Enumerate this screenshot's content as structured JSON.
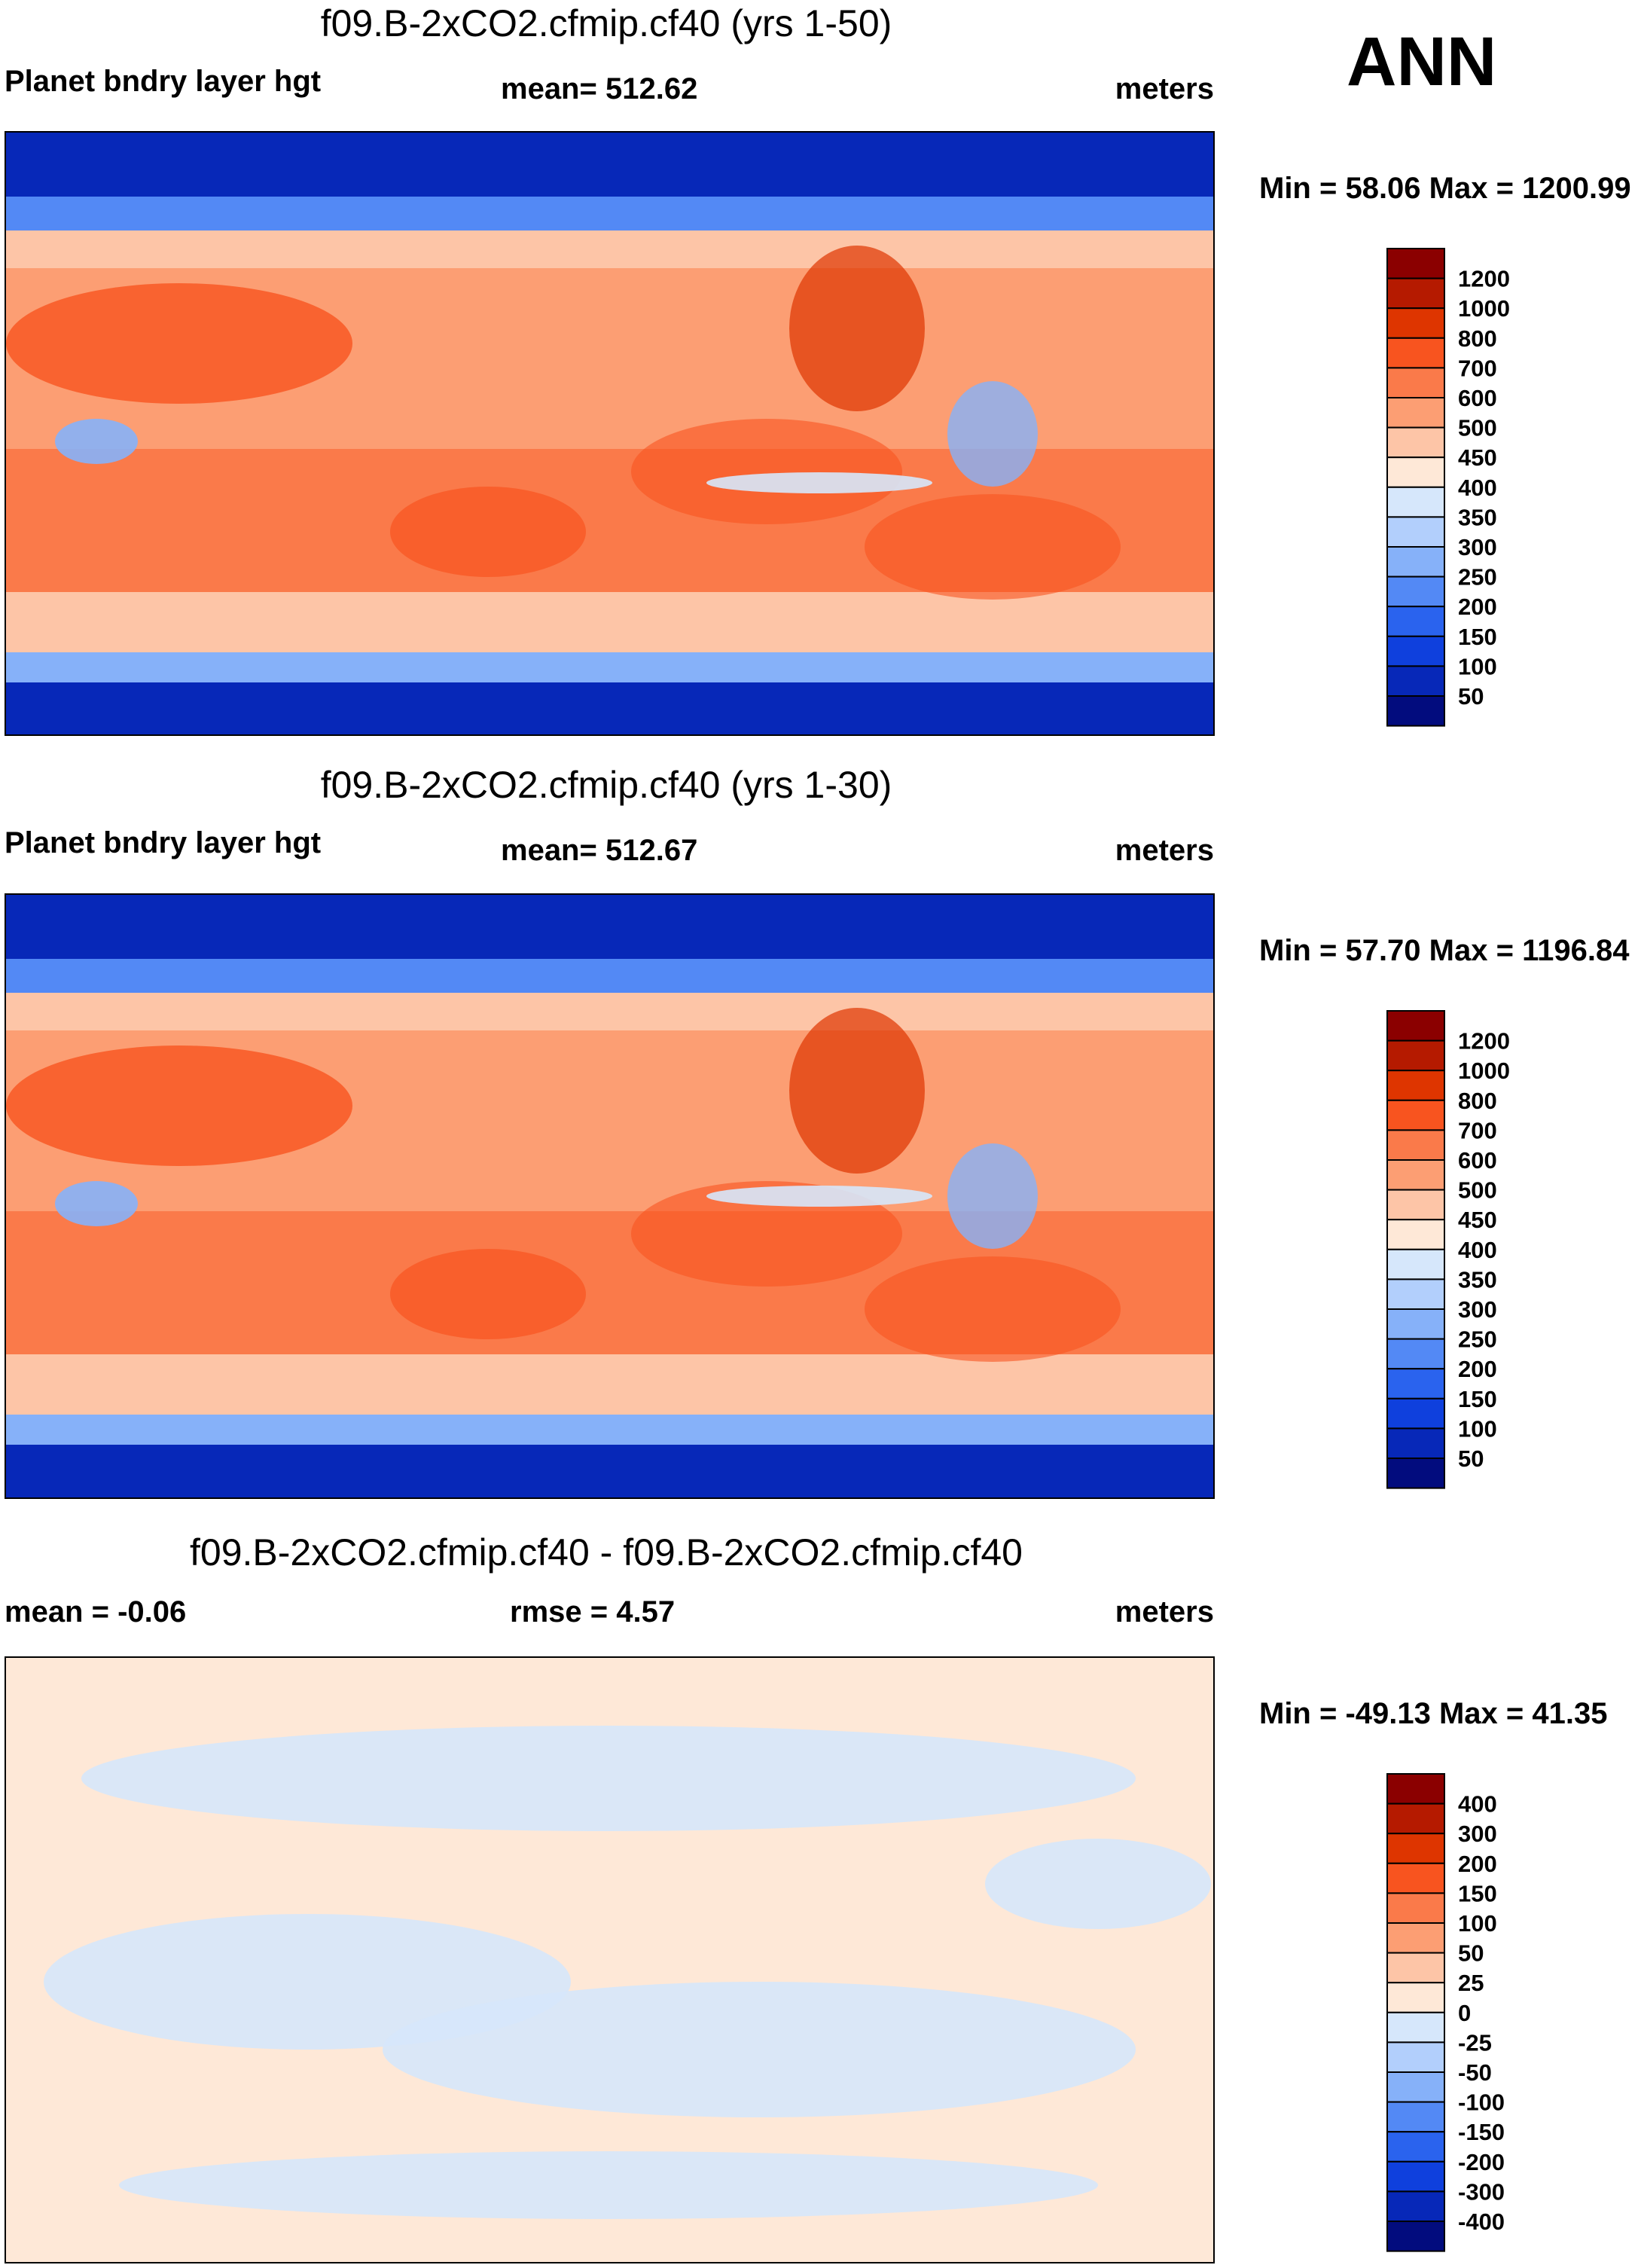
{
  "season": "ANN",
  "panels": [
    {
      "title": "f09.B-2xCO2.cfmip.cf40 (yrs 1-50)",
      "left_label": "Planet bndry layer hgt",
      "center_label": "mean= 512.62",
      "right_label": "meters",
      "minmax": "Min =  58.06 Max = 1200.99",
      "colorbar": {
        "ticks": [
          "1200",
          "1000",
          "800",
          "700",
          "600",
          "500",
          "450",
          "400",
          "350",
          "300",
          "250",
          "200",
          "150",
          "100",
          "50"
        ],
        "colors": [
          "#8b0000",
          "#b51a00",
          "#de3500",
          "#f8541f",
          "#fa7a4a",
          "#fc9e73",
          "#fdc5a7",
          "#fee8d7",
          "#d6e7fb",
          "#b2cffc",
          "#86b1f9",
          "#5389f5",
          "#2a63ee",
          "#0f40dd",
          "#0728b8",
          "#020c7e"
        ]
      }
    },
    {
      "title": "f09.B-2xCO2.cfmip.cf40 (yrs 1-30)",
      "left_label": "Planet bndry layer hgt",
      "center_label": "mean= 512.67",
      "right_label": "meters",
      "minmax": "Min =  57.70 Max = 1196.84",
      "colorbar": {
        "ticks": [
          "1200",
          "1000",
          "800",
          "700",
          "600",
          "500",
          "450",
          "400",
          "350",
          "300",
          "250",
          "200",
          "150",
          "100",
          "50"
        ],
        "colors": [
          "#8b0000",
          "#b51a00",
          "#de3500",
          "#f8541f",
          "#fa7a4a",
          "#fc9e73",
          "#fdc5a7",
          "#fee8d7",
          "#d6e7fb",
          "#b2cffc",
          "#86b1f9",
          "#5389f5",
          "#2a63ee",
          "#0f40dd",
          "#0728b8",
          "#020c7e"
        ]
      }
    },
    {
      "title": "f09.B-2xCO2.cfmip.cf40 - f09.B-2xCO2.cfmip.cf40",
      "left_label": "mean =  -0.06",
      "center_label": "rmse =   4.57",
      "right_label": "meters",
      "minmax": "Min = -49.13 Max =  41.35",
      "colorbar": {
        "ticks": [
          "400",
          "300",
          "200",
          "150",
          "100",
          "50",
          "25",
          "0",
          "-25",
          "-50",
          "-100",
          "-150",
          "-200",
          "-300",
          "-400"
        ],
        "colors": [
          "#8b0000",
          "#b51a00",
          "#de3500",
          "#f8541f",
          "#fa7a4a",
          "#fc9e73",
          "#fdc5a7",
          "#fee8d7",
          "#d6e7fb",
          "#b2cffc",
          "#86b1f9",
          "#5389f5",
          "#2a63ee",
          "#0f40dd",
          "#0728b8",
          "#020c7e"
        ]
      }
    }
  ],
  "chart_data": [
    {
      "type": "heatmap",
      "title": "f09.B-2xCO2.cfmip.cf40 (yrs 1-50)",
      "variable": "Planet bndry layer hgt",
      "units": "meters",
      "mean": 512.62,
      "min": 58.06,
      "max": 1200.99,
      "levels": [
        50,
        100,
        150,
        200,
        250,
        300,
        350,
        400,
        450,
        500,
        600,
        700,
        800,
        1000,
        1200
      ]
    },
    {
      "type": "heatmap",
      "title": "f09.B-2xCO2.cfmip.cf40 (yrs 1-30)",
      "variable": "Planet bndry layer hgt",
      "units": "meters",
      "mean": 512.67,
      "min": 57.7,
      "max": 1196.84,
      "levels": [
        50,
        100,
        150,
        200,
        250,
        300,
        350,
        400,
        450,
        500,
        600,
        700,
        800,
        1000,
        1200
      ]
    },
    {
      "type": "heatmap",
      "title": "f09.B-2xCO2.cfmip.cf40 - f09.B-2xCO2.cfmip.cf40",
      "units": "meters",
      "mean": -0.06,
      "rmse": 4.57,
      "min": -49.13,
      "max": 41.35,
      "levels": [
        -400,
        -300,
        -200,
        -150,
        -100,
        -50,
        -25,
        0,
        25,
        50,
        100,
        150,
        200,
        300,
        400
      ]
    }
  ]
}
